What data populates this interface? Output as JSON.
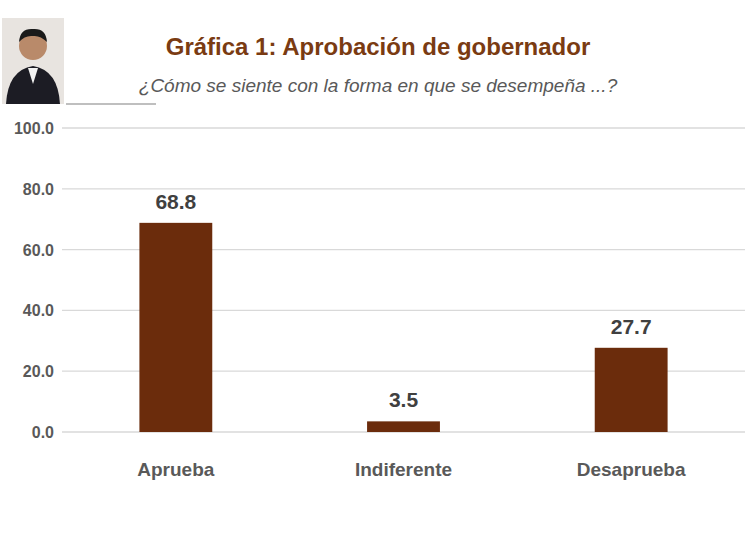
{
  "chart_data": {
    "type": "bar",
    "title": "Gráfica 1: Aprobación de gobernador",
    "subtitle": "¿Cómo se siente con la forma en que se desempeña ...?",
    "categories": [
      "Aprueba",
      "Indiferente",
      "Desaprueba"
    ],
    "values": [
      68.8,
      3.5,
      27.7
    ],
    "color": "#6b2c0c",
    "ylim": [
      0,
      100
    ],
    "yticks": [
      {
        "value": 0,
        "label": "0.0"
      },
      {
        "value": 20,
        "label": "20.0"
      },
      {
        "value": 40,
        "label": "40.0"
      },
      {
        "value": 60,
        "label": "60.0"
      },
      {
        "value": 80,
        "label": "80.0"
      },
      {
        "value": 100,
        "label": "100.0"
      }
    ],
    "grid": true,
    "data_labels": true
  }
}
